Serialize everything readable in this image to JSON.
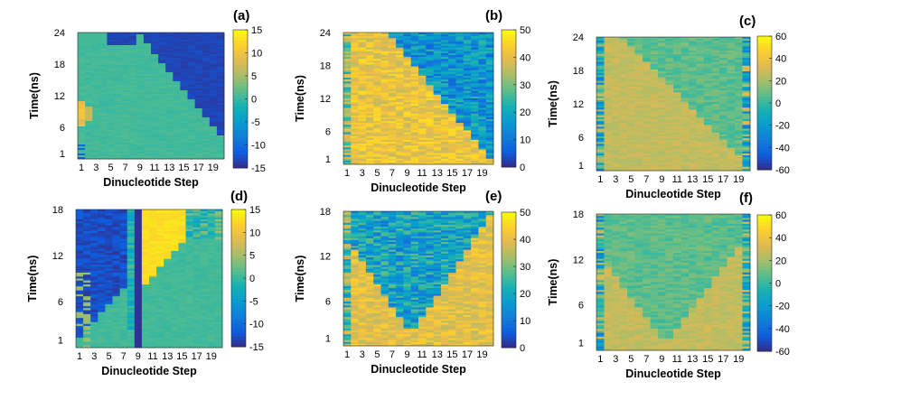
{
  "chart_data": [
    {
      "type": "heatmap",
      "panel_label": "(a)",
      "pattern": "a",
      "xlabel": "Dinucleotide Step",
      "ylabel": "Time(ns)",
      "x_ticks": [
        "1",
        "3",
        "5",
        "7",
        "9",
        "11",
        "13",
        "15",
        "17",
        "19"
      ],
      "y_ticks": [
        "1",
        "6",
        "12",
        "18",
        "24"
      ],
      "ylim": [
        0,
        24
      ],
      "xlim": [
        1,
        20
      ],
      "colorbar": {
        "min": -15,
        "max": 15,
        "ticks": [
          "-15",
          "-10",
          "-5",
          "0",
          "5",
          "10",
          "15"
        ]
      }
    },
    {
      "type": "heatmap",
      "panel_label": "(b)",
      "pattern": "b",
      "xlabel": "Dinucleotide Step",
      "ylabel": "Time(ns)",
      "x_ticks": [
        "1",
        "3",
        "5",
        "7",
        "9",
        "11",
        "13",
        "15",
        "17",
        "19"
      ],
      "y_ticks": [
        "1",
        "6",
        "12",
        "18",
        "24"
      ],
      "ylim": [
        0,
        24
      ],
      "xlim": [
        1,
        20
      ],
      "colorbar": {
        "min": 0,
        "max": 50,
        "ticks": [
          "0",
          "10",
          "20",
          "30",
          "40",
          "50"
        ]
      }
    },
    {
      "type": "heatmap",
      "panel_label": "(c)",
      "pattern": "c",
      "xlabel": "Dinucleotide Step",
      "ylabel": "Time(ns)",
      "x_ticks": [
        "1",
        "3",
        "5",
        "7",
        "9",
        "11",
        "13",
        "15",
        "17",
        "19"
      ],
      "y_ticks": [
        "1",
        "6",
        "12",
        "18",
        "24"
      ],
      "ylim": [
        0,
        24
      ],
      "xlim": [
        1,
        20
      ],
      "colorbar": {
        "min": -60,
        "max": 60,
        "ticks": [
          "-60",
          "-40",
          "-20",
          "0",
          "20",
          "40",
          "60"
        ]
      }
    },
    {
      "type": "heatmap",
      "panel_label": "(d)",
      "pattern": "d",
      "xlabel": "Dinucleotide Step",
      "ylabel": "Time(ns)",
      "x_ticks": [
        "1",
        "3",
        "5",
        "7",
        "9",
        "11",
        "13",
        "15",
        "17",
        "19"
      ],
      "y_ticks": [
        "1",
        "6",
        "12",
        "18"
      ],
      "ylim": [
        0,
        18
      ],
      "xlim": [
        1,
        20
      ],
      "colorbar": {
        "min": -15,
        "max": 15,
        "ticks": [
          "-15",
          "-10",
          "-5",
          "0",
          "5",
          "10",
          "15"
        ]
      }
    },
    {
      "type": "heatmap",
      "panel_label": "(e)",
      "pattern": "e",
      "xlabel": "Dinucleotide Step",
      "ylabel": "Time(ns)",
      "x_ticks": [
        "1",
        "3",
        "5",
        "7",
        "9",
        "11",
        "13",
        "15",
        "17",
        "19"
      ],
      "y_ticks": [
        "1",
        "6",
        "12",
        "18"
      ],
      "ylim": [
        0,
        18
      ],
      "xlim": [
        1,
        20
      ],
      "colorbar": {
        "min": 0,
        "max": 50,
        "ticks": [
          "0",
          "10",
          "20",
          "30",
          "40",
          "50"
        ]
      }
    },
    {
      "type": "heatmap",
      "panel_label": "(f)",
      "pattern": "f",
      "xlabel": "Dinucleotide Step",
      "ylabel": "Time(ns)",
      "x_ticks": [
        "1",
        "3",
        "5",
        "7",
        "9",
        "11",
        "13",
        "15",
        "17",
        "19"
      ],
      "y_ticks": [
        "1",
        "6",
        "12",
        "18"
      ],
      "ylim": [
        0,
        18
      ],
      "xlim": [
        1,
        20
      ],
      "colorbar": {
        "min": -60,
        "max": 60,
        "ticks": [
          "-60",
          "-40",
          "-20",
          "0",
          "20",
          "40",
          "60"
        ]
      }
    }
  ]
}
